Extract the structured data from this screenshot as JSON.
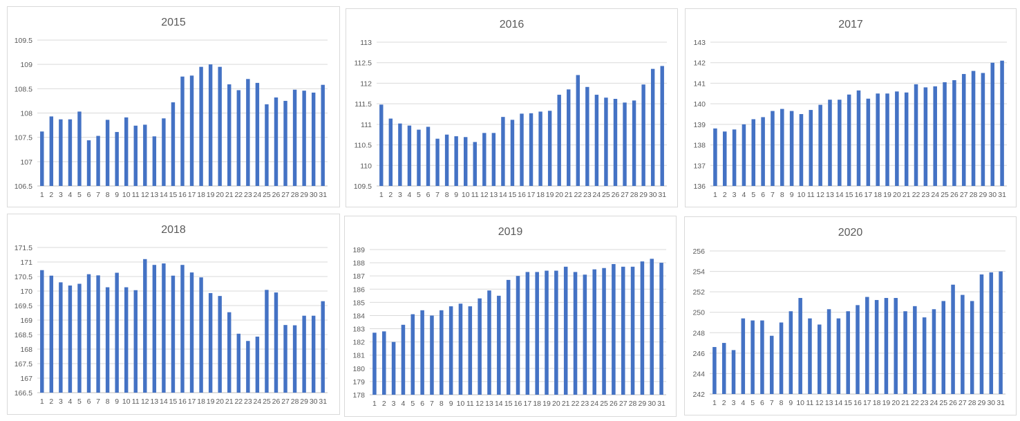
{
  "chart_data": [
    {
      "type": "bar",
      "title": "2015",
      "categories": [
        "1",
        "2",
        "3",
        "4",
        "5",
        "6",
        "7",
        "8",
        "9",
        "10",
        "11",
        "12",
        "13",
        "14",
        "15",
        "16",
        "17",
        "18",
        "19",
        "20",
        "21",
        "22",
        "23",
        "24",
        "25",
        "26",
        "27",
        "28",
        "29",
        "30",
        "31"
      ],
      "values": [
        107.62,
        107.93,
        107.87,
        107.87,
        108.03,
        107.44,
        107.53,
        107.86,
        107.61,
        107.91,
        107.74,
        107.76,
        107.52,
        107.89,
        108.22,
        108.75,
        108.77,
        108.95,
        109.0,
        108.95,
        108.59,
        108.47,
        108.7,
        108.62,
        108.18,
        108.32,
        108.25,
        108.48,
        108.46,
        108.42,
        108.58
      ],
      "ylim": [
        106.5,
        109.5
      ],
      "yticks": [
        "106.5",
        "107",
        "107.5",
        "108",
        "108.5",
        "109",
        "109.5"
      ],
      "grid": true,
      "legend": "none",
      "colors": {
        "bar": "#4472c4"
      }
    },
    {
      "type": "bar",
      "title": "2016",
      "categories": [
        "1",
        "2",
        "3",
        "4",
        "5",
        "6",
        "7",
        "8",
        "9",
        "10",
        "11",
        "12",
        "13",
        "14",
        "15",
        "16",
        "17",
        "18",
        "19",
        "20",
        "21",
        "22",
        "23",
        "24",
        "25",
        "26",
        "27",
        "28",
        "29",
        "30",
        "31"
      ],
      "values": [
        111.48,
        111.14,
        111.02,
        110.97,
        110.87,
        110.94,
        110.65,
        110.75,
        110.71,
        110.69,
        110.57,
        110.79,
        110.79,
        111.18,
        111.11,
        111.26,
        111.27,
        111.31,
        111.33,
        111.72,
        111.85,
        112.2,
        111.91,
        111.72,
        111.65,
        111.62,
        111.53,
        111.58,
        111.97,
        112.35,
        112.42
      ],
      "ylim": [
        109.5,
        113
      ],
      "yticks": [
        "109.5",
        "110",
        "110.5",
        "111",
        "111.5",
        "112",
        "112.5",
        "113"
      ],
      "grid": true,
      "legend": "none",
      "colors": {
        "bar": "#4472c4"
      }
    },
    {
      "type": "bar",
      "title": "2017",
      "categories": [
        "1",
        "2",
        "3",
        "4",
        "5",
        "6",
        "7",
        "8",
        "9",
        "10",
        "11",
        "12",
        "13",
        "14",
        "15",
        "16",
        "17",
        "18",
        "19",
        "20",
        "21",
        "22",
        "23",
        "24",
        "25",
        "26",
        "27",
        "28",
        "29",
        "30",
        "31"
      ],
      "values": [
        138.8,
        138.65,
        138.75,
        139.0,
        139.25,
        139.35,
        139.65,
        139.75,
        139.65,
        139.5,
        139.7,
        139.95,
        140.2,
        140.2,
        140.45,
        140.65,
        140.25,
        140.5,
        140.5,
        140.6,
        140.55,
        140.95,
        140.8,
        140.85,
        141.05,
        141.15,
        141.45,
        141.6,
        141.5,
        142.0,
        142.1
      ],
      "ylim": [
        136,
        143
      ],
      "yticks": [
        "136",
        "137",
        "138",
        "139",
        "140",
        "141",
        "142",
        "143"
      ],
      "grid": true,
      "legend": "none",
      "colors": {
        "bar": "#4472c4"
      }
    },
    {
      "type": "bar",
      "title": "2018",
      "categories": [
        "1",
        "2",
        "3",
        "4",
        "5",
        "6",
        "7",
        "8",
        "9",
        "10",
        "11",
        "12",
        "13",
        "14",
        "15",
        "16",
        "17",
        "18",
        "19",
        "20",
        "21",
        "22",
        "23",
        "24",
        "25",
        "26",
        "27",
        "28",
        "29",
        "30",
        "31"
      ],
      "values": [
        170.72,
        170.53,
        170.3,
        170.19,
        170.25,
        170.58,
        170.54,
        170.13,
        170.63,
        170.13,
        170.03,
        171.1,
        170.9,
        170.95,
        170.53,
        170.9,
        170.64,
        170.47,
        169.93,
        169.83,
        169.27,
        168.53,
        168.28,
        168.43,
        170.04,
        169.95,
        168.83,
        168.82,
        169.15,
        169.15,
        169.65
      ],
      "ylim": [
        166.5,
        171.5
      ],
      "yticks": [
        "166.5",
        "167",
        "167.5",
        "168",
        "168.5",
        "169",
        "169.5",
        "170",
        "170.5",
        "171",
        "171.5"
      ],
      "grid": true,
      "legend": "none",
      "colors": {
        "bar": "#4472c4"
      }
    },
    {
      "type": "bar",
      "title": "2019",
      "categories": [
        "1",
        "2",
        "3",
        "4",
        "5",
        "6",
        "7",
        "8",
        "9",
        "10",
        "11",
        "12",
        "13",
        "14",
        "15",
        "16",
        "17",
        "18",
        "19",
        "20",
        "21",
        "22",
        "23",
        "24",
        "25",
        "26",
        "27",
        "28",
        "29",
        "30",
        "31"
      ],
      "values": [
        182.7,
        182.8,
        182.0,
        183.3,
        184.1,
        184.4,
        184.0,
        184.4,
        184.7,
        184.9,
        184.7,
        185.3,
        185.9,
        185.5,
        186.7,
        187.0,
        187.3,
        187.3,
        187.4,
        187.4,
        187.7,
        187.3,
        187.1,
        187.5,
        187.6,
        187.9,
        187.7,
        187.7,
        188.1,
        188.3,
        188.0
      ],
      "ylim": [
        178,
        189
      ],
      "yticks": [
        "178",
        "179",
        "180",
        "181",
        "182",
        "183",
        "184",
        "185",
        "186",
        "187",
        "188",
        "189"
      ],
      "grid": true,
      "legend": "none",
      "colors": {
        "bar": "#4472c4"
      }
    },
    {
      "type": "bar",
      "title": "2020",
      "categories": [
        "1",
        "2",
        "3",
        "4",
        "5",
        "6",
        "7",
        "8",
        "9",
        "10",
        "11",
        "12",
        "13",
        "14",
        "15",
        "16",
        "17",
        "18",
        "19",
        "20",
        "21",
        "22",
        "23",
        "24",
        "25",
        "26",
        "27",
        "28",
        "29",
        "30",
        "31"
      ],
      "values": [
        246.6,
        247.0,
        246.3,
        249.4,
        249.2,
        249.2,
        247.7,
        249.0,
        250.1,
        251.4,
        249.4,
        248.8,
        250.3,
        249.4,
        250.1,
        250.7,
        251.5,
        251.2,
        251.4,
        251.4,
        250.1,
        250.6,
        249.5,
        250.3,
        251.1,
        252.7,
        251.7,
        251.1,
        253.7,
        253.9,
        254.0
      ],
      "ylim": [
        242,
        256
      ],
      "yticks": [
        "242",
        "244",
        "246",
        "248",
        "250",
        "252",
        "254",
        "256"
      ],
      "grid": true,
      "legend": "none",
      "colors": {
        "bar": "#4472c4"
      }
    }
  ]
}
